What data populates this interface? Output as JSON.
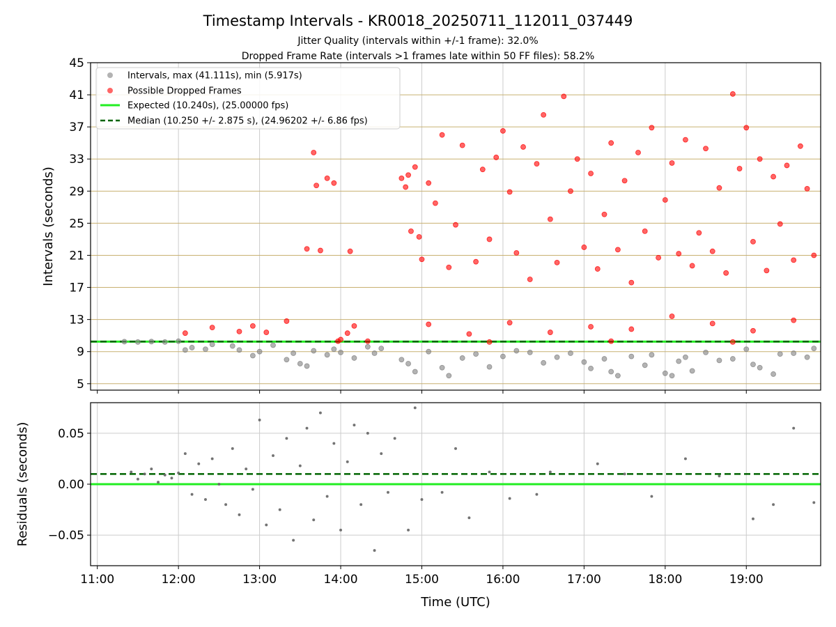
{
  "title": "Timestamp Intervals - KR0018_20250711_112011_037449",
  "subtitle_1": "Jitter Quality (intervals within +/-1 frame): 32.0%",
  "subtitle_2": "Dropped Frame Rate (intervals >1 frames late within 50 FF files): 58.2%",
  "colors": {
    "intervals": "#808080",
    "dropped": "#ff0000",
    "expected": "#22ee22",
    "median": "#006400",
    "hgrid": "#c8b070",
    "vgrid": "#cccccc"
  },
  "chart_data": [
    {
      "type": "scatter",
      "ylabel": "Intervals (seconds)",
      "xlabel": "",
      "ylim": [
        4.2,
        45
      ],
      "xlim": [
        "10:55",
        "19:55"
      ],
      "yticks": [
        "5",
        "9",
        "13",
        "17",
        "21",
        "25",
        "29",
        "33",
        "37",
        "41",
        "45"
      ],
      "xticks": [
        "11:00",
        "12:00",
        "13:00",
        "14:00",
        "15:00",
        "16:00",
        "17:00",
        "18:00",
        "19:00"
      ],
      "grid": true,
      "legend_position": "top-left",
      "legend": [
        "Intervals, max (41.111s), min (5.917s)",
        "Possible Dropped Frames",
        "Expected (10.240s), (25.00000 fps)",
        "Median (10.250 +/- 2.875 s), (24.96202 +/- 6.86 fps)"
      ],
      "series": [
        {
          "name": "Intervals, max (41.111s), min (5.917s)",
          "points": [
            [
              "11:20",
              10.24
            ],
            [
              "11:30",
              10.2
            ],
            [
              "11:40",
              10.25
            ],
            [
              "11:50",
              10.2
            ],
            [
              "12:00",
              10.3
            ],
            [
              "12:05",
              9.2
            ],
            [
              "12:10",
              9.5
            ],
            [
              "12:20",
              9.3
            ],
            [
              "12:25",
              9.9
            ],
            [
              "12:40",
              9.7
            ],
            [
              "12:45",
              9.2
            ],
            [
              "12:55",
              8.5
            ],
            [
              "13:00",
              9.0
            ],
            [
              "13:10",
              9.8
            ],
            [
              "13:20",
              8.0
            ],
            [
              "13:25",
              8.8
            ],
            [
              "13:30",
              7.5
            ],
            [
              "13:35",
              7.2
            ],
            [
              "13:40",
              9.1
            ],
            [
              "13:50",
              8.6
            ],
            [
              "13:55",
              9.3
            ],
            [
              "14:00",
              8.9
            ],
            [
              "14:10",
              8.2
            ],
            [
              "14:20",
              9.6
            ],
            [
              "14:25",
              8.8
            ],
            [
              "14:30",
              9.4
            ],
            [
              "14:45",
              8.0
            ],
            [
              "14:50",
              7.5
            ],
            [
              "14:55",
              6.5
            ],
            [
              "15:05",
              9.0
            ],
            [
              "15:15",
              7.0
            ],
            [
              "15:20",
              6.0
            ],
            [
              "15:30",
              8.2
            ],
            [
              "15:40",
              8.7
            ],
            [
              "15:50",
              7.1
            ],
            [
              "16:00",
              8.4
            ],
            [
              "16:10",
              9.1
            ],
            [
              "16:20",
              8.9
            ],
            [
              "16:30",
              7.6
            ],
            [
              "16:40",
              8.3
            ],
            [
              "16:50",
              8.8
            ],
            [
              "17:00",
              7.7
            ],
            [
              "17:05",
              6.9
            ],
            [
              "17:15",
              8.1
            ],
            [
              "17:20",
              6.5
            ],
            [
              "17:25",
              6.0
            ],
            [
              "17:35",
              8.4
            ],
            [
              "17:45",
              7.3
            ],
            [
              "17:50",
              8.6
            ],
            [
              "18:00",
              6.3
            ],
            [
              "18:05",
              6.0
            ],
            [
              "18:10",
              7.8
            ],
            [
              "18:15",
              8.3
            ],
            [
              "18:20",
              6.6
            ],
            [
              "18:30",
              8.9
            ],
            [
              "18:40",
              7.9
            ],
            [
              "18:50",
              8.1
            ],
            [
              "19:00",
              9.3
            ],
            [
              "19:05",
              7.4
            ],
            [
              "19:10",
              7.0
            ],
            [
              "19:20",
              6.2
            ],
            [
              "19:25",
              8.7
            ],
            [
              "19:35",
              8.8
            ],
            [
              "19:45",
              8.3
            ],
            [
              "19:50",
              9.4
            ]
          ]
        },
        {
          "name": "Possible Dropped Frames",
          "points": [
            [
              "12:05",
              11.3
            ],
            [
              "12:25",
              12.0
            ],
            [
              "12:45",
              11.5
            ],
            [
              "12:55",
              12.2
            ],
            [
              "13:05",
              11.4
            ],
            [
              "13:20",
              12.8
            ],
            [
              "13:35",
              21.8
            ],
            [
              "13:40",
              33.8
            ],
            [
              "13:42",
              29.7
            ],
            [
              "13:45",
              21.6
            ],
            [
              "13:50",
              30.6
            ],
            [
              "13:55",
              30.0
            ],
            [
              "13:58",
              10.3
            ],
            [
              "14:00",
              10.5
            ],
            [
              "14:05",
              11.3
            ],
            [
              "14:07",
              21.5
            ],
            [
              "14:10",
              12.2
            ],
            [
              "14:45",
              30.6
            ],
            [
              "14:48",
              29.5
            ],
            [
              "14:50",
              31.0
            ],
            [
              "14:52",
              24.0
            ],
            [
              "14:55",
              32.0
            ],
            [
              "14:58",
              23.3
            ],
            [
              "15:00",
              20.5
            ],
            [
              "15:05",
              30.0
            ],
            [
              "15:10",
              27.5
            ],
            [
              "15:15",
              36.0
            ],
            [
              "15:20",
              19.5
            ],
            [
              "15:25",
              24.8
            ],
            [
              "15:30",
              34.7
            ],
            [
              "15:40",
              20.2
            ],
            [
              "15:45",
              31.7
            ],
            [
              "15:50",
              23.0
            ],
            [
              "15:55",
              33.2
            ],
            [
              "16:00",
              36.5
            ],
            [
              "16:05",
              28.9
            ],
            [
              "16:10",
              21.3
            ],
            [
              "16:15",
              34.5
            ],
            [
              "16:20",
              18.0
            ],
            [
              "16:25",
              32.4
            ],
            [
              "16:30",
              38.5
            ],
            [
              "16:35",
              25.5
            ],
            [
              "16:40",
              20.1
            ],
            [
              "16:45",
              40.8
            ],
            [
              "16:50",
              29.0
            ],
            [
              "16:55",
              33.0
            ],
            [
              "17:00",
              22.0
            ],
            [
              "17:05",
              31.2
            ],
            [
              "17:10",
              19.3
            ],
            [
              "17:15",
              26.1
            ],
            [
              "17:20",
              35.0
            ],
            [
              "17:25",
              21.7
            ],
            [
              "17:30",
              30.3
            ],
            [
              "17:35",
              17.6
            ],
            [
              "17:40",
              33.8
            ],
            [
              "17:45",
              24.0
            ],
            [
              "17:50",
              36.9
            ],
            [
              "17:55",
              20.7
            ],
            [
              "18:00",
              27.9
            ],
            [
              "18:05",
              32.5
            ],
            [
              "18:10",
              21.2
            ],
            [
              "18:15",
              35.4
            ],
            [
              "18:20",
              19.7
            ],
            [
              "18:25",
              23.8
            ],
            [
              "18:30",
              34.3
            ],
            [
              "18:35",
              21.5
            ],
            [
              "18:40",
              29.4
            ],
            [
              "18:45",
              18.8
            ],
            [
              "18:50",
              41.1
            ],
            [
              "18:55",
              31.8
            ],
            [
              "19:00",
              36.9
            ],
            [
              "19:05",
              22.7
            ],
            [
              "19:10",
              33.0
            ],
            [
              "19:15",
              19.1
            ],
            [
              "19:20",
              30.8
            ],
            [
              "19:25",
              24.9
            ],
            [
              "19:30",
              32.2
            ],
            [
              "19:35",
              20.4
            ],
            [
              "19:40",
              34.6
            ],
            [
              "19:45",
              29.3
            ],
            [
              "19:50",
              21.0
            ],
            [
              "15:05",
              12.4
            ],
            [
              "15:35",
              11.2
            ],
            [
              "16:05",
              12.6
            ],
            [
              "16:35",
              11.4
            ],
            [
              "17:05",
              12.1
            ],
            [
              "17:35",
              11.8
            ],
            [
              "18:05",
              13.4
            ],
            [
              "18:35",
              12.5
            ],
            [
              "19:05",
              11.6
            ],
            [
              "19:35",
              12.9
            ],
            [
              "14:20",
              10.3
            ],
            [
              "15:50",
              10.2
            ],
            [
              "17:20",
              10.3
            ],
            [
              "18:50",
              10.2
            ]
          ]
        }
      ],
      "lines": [
        {
          "name": "Expected (10.240s), (25.00000 fps)",
          "y": 10.24,
          "style": "solid"
        },
        {
          "name": "Median (10.250 +/- 2.875 s), (24.96202 +/- 6.86 fps)",
          "y": 10.25,
          "style": "dashed"
        }
      ]
    },
    {
      "type": "scatter",
      "ylabel": "Residuals (seconds)",
      "xlabel": "Time (UTC)",
      "ylim": [
        -0.08,
        0.08
      ],
      "xlim": [
        "10:55",
        "19:55"
      ],
      "yticks": [
        "−0.05",
        "0.00",
        "0.05"
      ],
      "ytick_values": [
        -0.05,
        0.0,
        0.05
      ],
      "xticks": [
        "11:00",
        "12:00",
        "13:00",
        "14:00",
        "15:00",
        "16:00",
        "17:00",
        "18:00",
        "19:00"
      ],
      "grid": true,
      "series": [
        {
          "name": "",
          "points": [
            [
              "11:25",
              0.012
            ],
            [
              "11:30",
              0.005
            ],
            [
              "11:35",
              0.01
            ],
            [
              "11:40",
              0.015
            ],
            [
              "11:45",
              0.002
            ],
            [
              "11:50",
              0.009
            ],
            [
              "11:55",
              0.006
            ],
            [
              "12:00",
              0.011
            ],
            [
              "12:05",
              0.03
            ],
            [
              "12:10",
              -0.01
            ],
            [
              "12:15",
              0.02
            ],
            [
              "12:20",
              -0.015
            ],
            [
              "12:25",
              0.025
            ],
            [
              "12:30",
              0.0
            ],
            [
              "12:35",
              -0.02
            ],
            [
              "12:40",
              0.035
            ],
            [
              "12:45",
              -0.03
            ],
            [
              "12:50",
              0.015
            ],
            [
              "12:55",
              -0.005
            ],
            [
              "13:00",
              0.063
            ],
            [
              "13:05",
              -0.04
            ],
            [
              "13:10",
              0.028
            ],
            [
              "13:15",
              -0.025
            ],
            [
              "13:20",
              0.045
            ],
            [
              "13:25",
              -0.055
            ],
            [
              "13:30",
              0.018
            ],
            [
              "13:35",
              0.055
            ],
            [
              "13:40",
              -0.035
            ],
            [
              "13:45",
              0.07
            ],
            [
              "13:50",
              -0.012
            ],
            [
              "13:55",
              0.04
            ],
            [
              "14:00",
              -0.045
            ],
            [
              "14:05",
              0.022
            ],
            [
              "14:10",
              0.058
            ],
            [
              "14:15",
              -0.02
            ],
            [
              "14:20",
              0.05
            ],
            [
              "14:25",
              -0.065
            ],
            [
              "14:30",
              0.03
            ],
            [
              "14:35",
              -0.008
            ],
            [
              "14:40",
              0.045
            ],
            [
              "14:50",
              -0.045
            ],
            [
              "14:55",
              0.075
            ],
            [
              "15:00",
              -0.015
            ],
            [
              "15:15",
              -0.008
            ],
            [
              "15:25",
              0.035
            ],
            [
              "15:35",
              -0.033
            ],
            [
              "15:50",
              0.012
            ],
            [
              "16:05",
              -0.014
            ],
            [
              "16:25",
              -0.01
            ],
            [
              "16:35",
              0.012
            ],
            [
              "17:10",
              0.02
            ],
            [
              "17:30",
              0.01
            ],
            [
              "17:50",
              -0.012
            ],
            [
              "18:15",
              0.025
            ],
            [
              "18:40",
              0.008
            ],
            [
              "19:05",
              -0.034
            ],
            [
              "19:20",
              -0.02
            ],
            [
              "19:35",
              0.055
            ],
            [
              "19:50",
              -0.018
            ]
          ]
        }
      ],
      "lines": [
        {
          "name": "Expected",
          "y": 0.0,
          "style": "solid"
        },
        {
          "name": "Median",
          "y": 0.01,
          "style": "dashed"
        }
      ]
    }
  ]
}
